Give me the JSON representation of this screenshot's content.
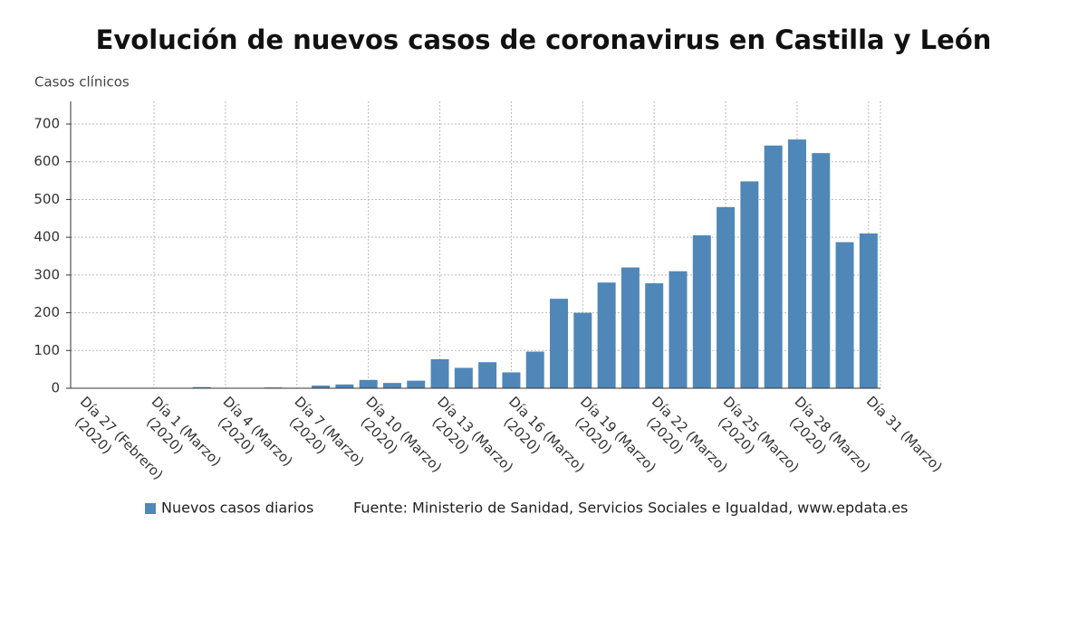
{
  "chart_data": {
    "type": "bar",
    "title": "Evolución de nuevos casos de coronavirus en Castilla y León",
    "y_label": "Casos clínicos",
    "categories": [
      "Día 27 (Febrero) (2020)",
      null,
      null,
      "Día 1 (Marzo) (2020)",
      null,
      null,
      "Día 4 (Marzo) (2020)",
      null,
      null,
      "Día 7 (Marzo) (2020)",
      null,
      null,
      "Día 10 (Marzo) (2020)",
      null,
      null,
      "Día 13 (Marzo) (2020)",
      null,
      null,
      "Día 16 (Marzo) (2020)",
      null,
      null,
      "Día 19 (Marzo) (2020)",
      null,
      null,
      "Día 22 (Marzo) (2020)",
      null,
      null,
      "Día 25 (Marzo) (2020)",
      null,
      null,
      "Día 28 (Marzo) (2020)",
      null,
      null,
      "Día 31 (Marzo)"
    ],
    "series": [
      {
        "name": "Nuevos casos diarios",
        "color": "#4f87b8",
        "values": [
          1,
          0,
          0,
          0,
          0,
          3,
          1,
          0,
          2,
          1,
          7,
          10,
          22,
          14,
          20,
          77,
          54,
          69,
          42,
          97,
          237,
          200,
          280,
          320,
          278,
          310,
          405,
          480,
          548,
          643,
          659,
          623,
          387,
          410
        ]
      }
    ],
    "ylim": [
      0,
      760
    ],
    "yticks": [
      0,
      100,
      200,
      300,
      400,
      500,
      600,
      700
    ],
    "grid": true,
    "source": "Fuente: Ministerio de Sanidad, Servicios Sociales e Igualdad, www.epdata.es"
  }
}
